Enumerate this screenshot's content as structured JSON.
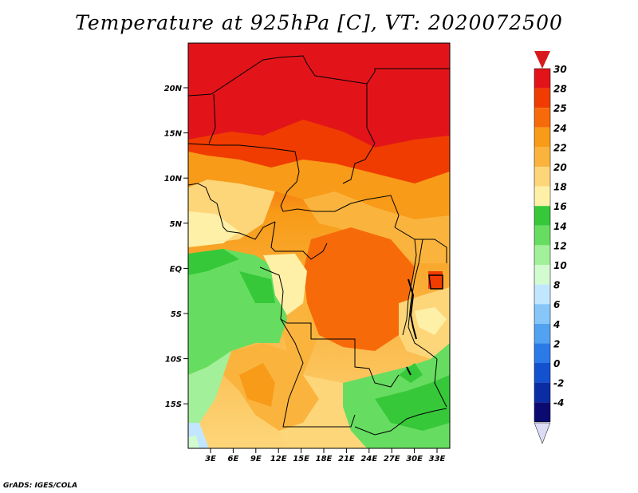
{
  "title": "Temperature at 925hPa [C], VT: 2020072500",
  "credit": "GrADS: IGES/COLA",
  "map": {
    "lon_range": [
      0,
      36
    ],
    "lat_range": [
      -20,
      25
    ],
    "lat_ticks": [
      "20N",
      "15N",
      "10N",
      "5N",
      "EQ",
      "5S",
      "10S",
      "15S"
    ],
    "lon_ticks": [
      "3E",
      "6E",
      "9E",
      "12E",
      "15E",
      "18E",
      "21E",
      "24E",
      "27E",
      "30E",
      "33E"
    ]
  },
  "colorbar": {
    "labels": [
      "30",
      "28",
      "25",
      "24",
      "22",
      "20",
      "18",
      "16",
      "14",
      "12",
      "10",
      "8",
      "6",
      "4",
      "2",
      "0",
      "-2",
      "-4"
    ],
    "colors": [
      "#e2141a",
      "#f03c00",
      "#f66a0a",
      "#f89b18",
      "#fab43e",
      "#fdd67a",
      "#fff0a8",
      "#37c83a",
      "#66dd60",
      "#a2f09a",
      "#d2fbd0",
      "#c2e6ff",
      "#86c6f9",
      "#52a2f2",
      "#2b7ae8",
      "#1451cf",
      "#0a2ca5",
      "#0a0a70"
    ],
    "top_cap": "#d7191c",
    "bottom_cap": "#dddcf5"
  }
}
